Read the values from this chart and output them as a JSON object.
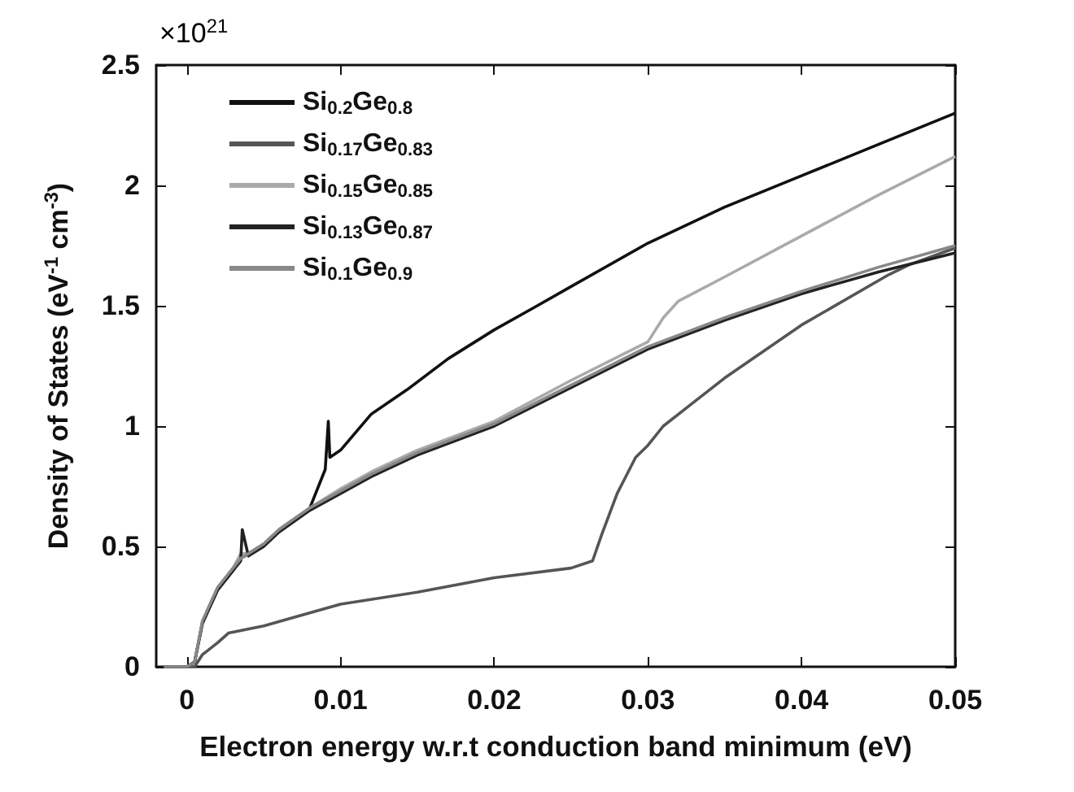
{
  "chart_data": {
    "type": "line",
    "xlabel": "Electron energy w.r.t conduction band minimum (eV)",
    "ylabel": "Density of States (eV$^{-1}$ cm$^{-3}$)",
    "annotations": [
      "×10$^{21}$"
    ],
    "xlim": [
      -0.002,
      0.05
    ],
    "xticks": [
      0,
      0.01,
      0.02,
      0.03,
      0.04,
      0.05
    ],
    "ylim": [
      0,
      2.5
    ],
    "yticks": [
      0,
      0.5,
      1,
      1.5,
      2,
      2.5
    ],
    "grid": false,
    "legend": "top left",
    "marker": "none",
    "line_style": "solid",
    "series": [
      {
        "name": "Si$_{0.2}$Ge$_{0.8}$",
        "color": "#111111",
        "x": [
          -0.0015,
          0,
          0.0005,
          0.001,
          0.0015,
          0.002,
          0.003,
          0.0035,
          0.004,
          0.005,
          0.006,
          0.008,
          0.009,
          0.0092,
          0.0093,
          0.01,
          0.012,
          0.0143,
          0.017,
          0.02,
          0.0228,
          0.025,
          0.03,
          0.035,
          0.04,
          0.045,
          0.05
        ],
        "values": [
          0,
          0,
          0.02,
          0.18,
          0.25,
          0.32,
          0.4,
          0.45,
          0.47,
          0.51,
          0.57,
          0.66,
          0.82,
          1.02,
          0.87,
          0.9,
          1.05,
          1.15,
          1.28,
          1.4,
          1.5,
          1.58,
          1.76,
          1.91,
          2.04,
          2.17,
          2.3
        ]
      },
      {
        "name": "Si$_{0.17}$Ge$_{0.83}$",
        "color": "#555555",
        "x": [
          -0.0015,
          0.0005,
          0.001,
          0.002,
          0.0027,
          0.005,
          0.01,
          0.015,
          0.02,
          0.025,
          0.0264,
          0.027,
          0.028,
          0.0292,
          0.03,
          0.031,
          0.033,
          0.035,
          0.04,
          0.0457,
          0.047,
          0.05
        ],
        "values": [
          0,
          0,
          0.05,
          0.1,
          0.14,
          0.17,
          0.26,
          0.31,
          0.37,
          0.41,
          0.44,
          0.55,
          0.72,
          0.87,
          0.92,
          1.0,
          1.1,
          1.2,
          1.42,
          1.63,
          1.67,
          1.74
        ]
      },
      {
        "name": "Si$_{0.15}$Ge$_{0.85}$",
        "color": "#aaaaaa",
        "x": [
          -0.0015,
          0,
          0.0005,
          0.001,
          0.0015,
          0.002,
          0.003,
          0.0035,
          0.004,
          0.005,
          0.006,
          0.008,
          0.01,
          0.012,
          0.015,
          0.02,
          0.025,
          0.03,
          0.031,
          0.032,
          0.035,
          0.04,
          0.045,
          0.05
        ],
        "values": [
          0,
          0,
          0.02,
          0.18,
          0.26,
          0.33,
          0.41,
          0.47,
          0.47,
          0.51,
          0.57,
          0.66,
          0.74,
          0.81,
          0.9,
          1.02,
          1.19,
          1.35,
          1.45,
          1.52,
          1.62,
          1.79,
          1.96,
          2.12
        ]
      },
      {
        "name": "Si$_{0.13}$Ge$_{0.87}$",
        "color": "#222222",
        "x": [
          -0.0015,
          0,
          0.0005,
          0.001,
          0.0015,
          0.002,
          0.003,
          0.0035,
          0.0036,
          0.004,
          0.005,
          0.006,
          0.008,
          0.01,
          0.012,
          0.015,
          0.02,
          0.025,
          0.03,
          0.035,
          0.04,
          0.045,
          0.05
        ],
        "values": [
          0,
          0,
          0.02,
          0.18,
          0.25,
          0.32,
          0.4,
          0.44,
          0.57,
          0.46,
          0.5,
          0.56,
          0.65,
          0.72,
          0.79,
          0.88,
          1.0,
          1.16,
          1.32,
          1.44,
          1.55,
          1.64,
          1.72
        ]
      },
      {
        "name": "Si$_{0.1}$Ge$_{0.9}$",
        "color": "#888888",
        "x": [
          -0.0015,
          0,
          0.0005,
          0.001,
          0.0015,
          0.002,
          0.003,
          0.0035,
          0.004,
          0.005,
          0.006,
          0.008,
          0.01,
          0.012,
          0.015,
          0.02,
          0.025,
          0.03,
          0.035,
          0.04,
          0.045,
          0.05
        ],
        "values": [
          0,
          0,
          0.02,
          0.19,
          0.26,
          0.33,
          0.41,
          0.45,
          0.47,
          0.51,
          0.57,
          0.66,
          0.73,
          0.8,
          0.89,
          1.01,
          1.17,
          1.33,
          1.45,
          1.56,
          1.66,
          1.75
        ]
      }
    ]
  }
}
